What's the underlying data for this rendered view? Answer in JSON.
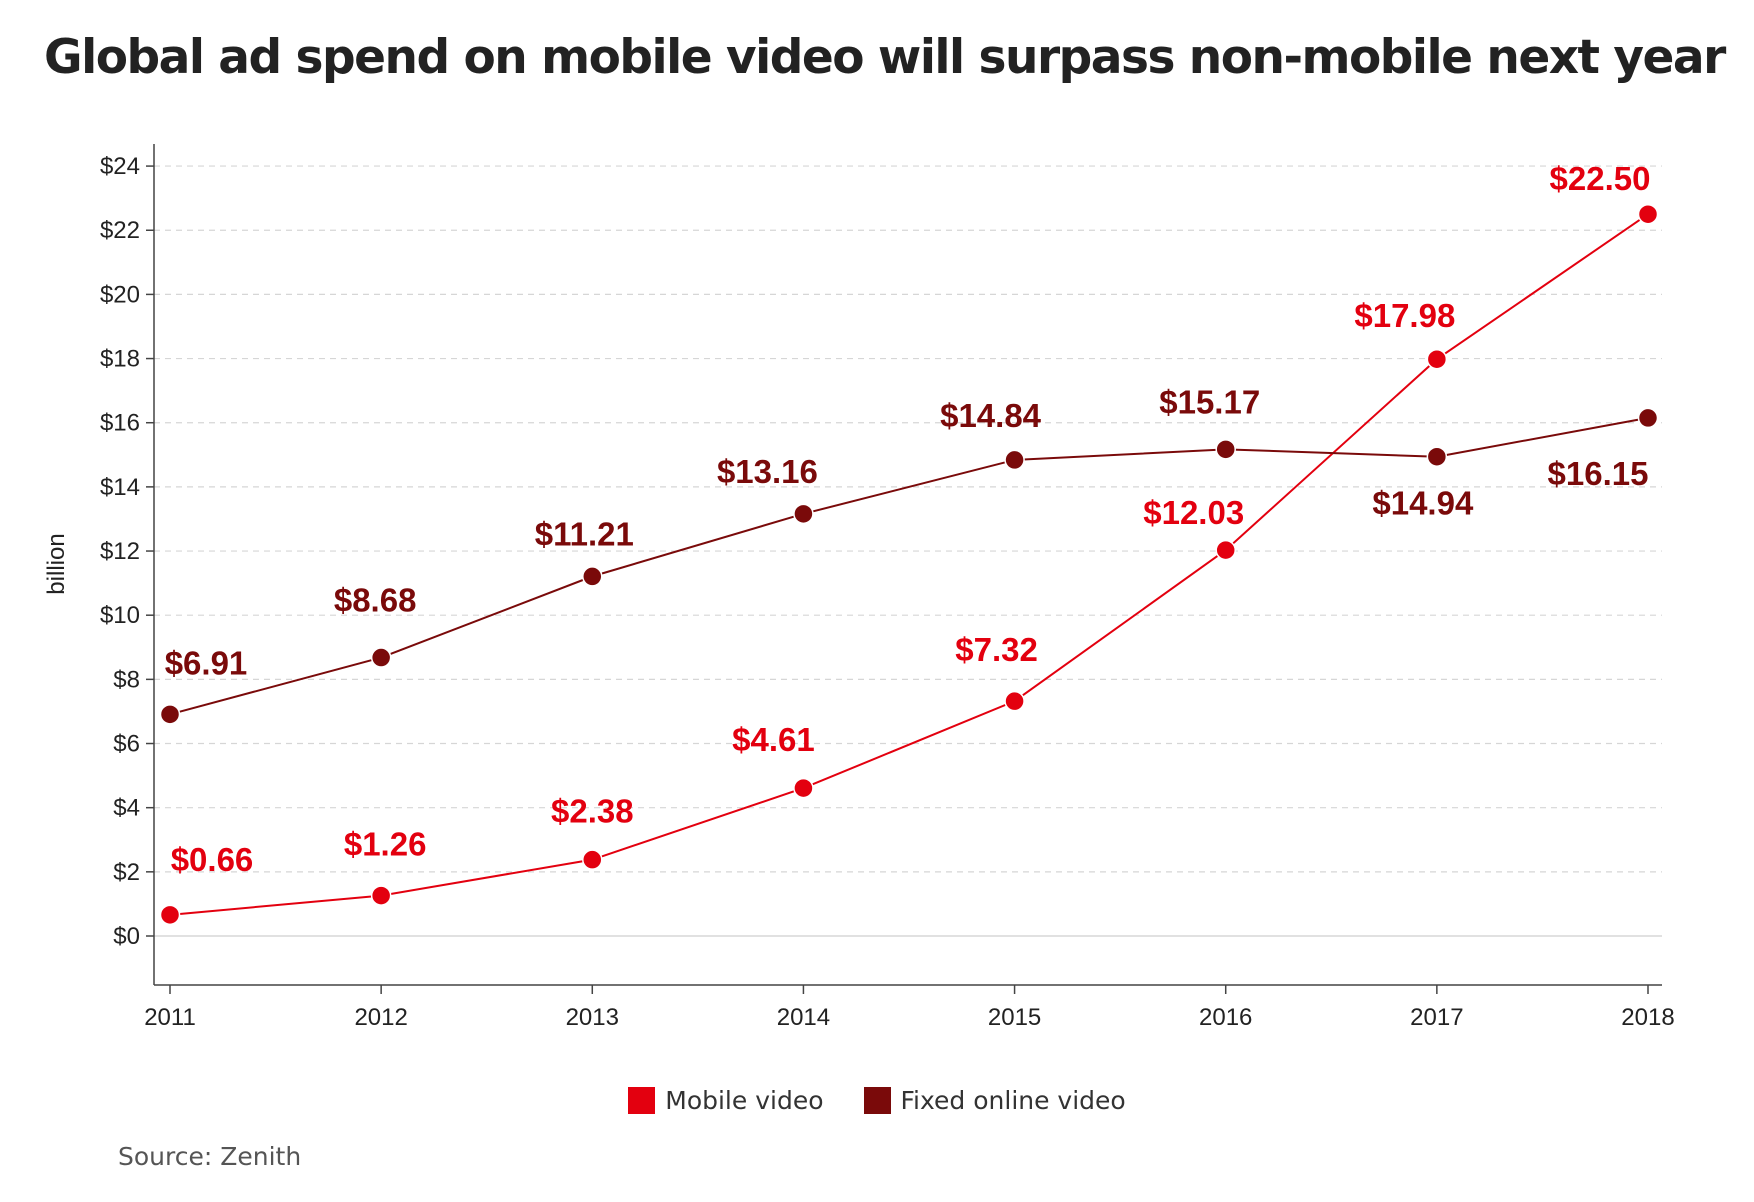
{
  "title": "Global ad spend on mobile video will surpass non-mobile next year",
  "source": "Source: Zenith",
  "chart_data": {
    "type": "line",
    "title": "Global ad spend on mobile video will surpass non-mobile next year",
    "xlabel": "",
    "ylabel": "billion",
    "x": [
      "2011",
      "2012",
      "2013",
      "2014",
      "2015",
      "2016",
      "2017",
      "2018"
    ],
    "ylim": [
      -1.5,
      24.5
    ],
    "yticks": [
      0,
      2,
      4,
      6,
      8,
      10,
      12,
      14,
      16,
      18,
      20,
      22,
      24
    ],
    "ytick_labels": [
      "$0",
      "$2",
      "$4",
      "$6",
      "$8",
      "$10",
      "$12",
      "$14",
      "$16",
      "$18",
      "$20",
      "$22",
      "$24"
    ],
    "grid": true,
    "legend_position": "bottom-center",
    "series": [
      {
        "name": "Mobile video",
        "color": "#e3000f",
        "values": [
          0.66,
          1.26,
          2.38,
          4.61,
          7.32,
          12.03,
          17.98,
          22.5
        ],
        "labels": [
          "$0.66",
          "$1.26",
          "$2.38",
          "$4.61",
          "$7.32",
          "$12.03",
          "$17.98",
          "$22.50"
        ]
      },
      {
        "name": "Fixed online video",
        "color": "#7a0a0a",
        "values": [
          6.91,
          8.68,
          11.21,
          13.16,
          14.84,
          15.17,
          14.94,
          16.15
        ],
        "labels": [
          "$6.91",
          "$8.68",
          "$11.21",
          "$13.16",
          "$14.84",
          "$15.17",
          "$14.94",
          "$16.15"
        ]
      }
    ]
  }
}
